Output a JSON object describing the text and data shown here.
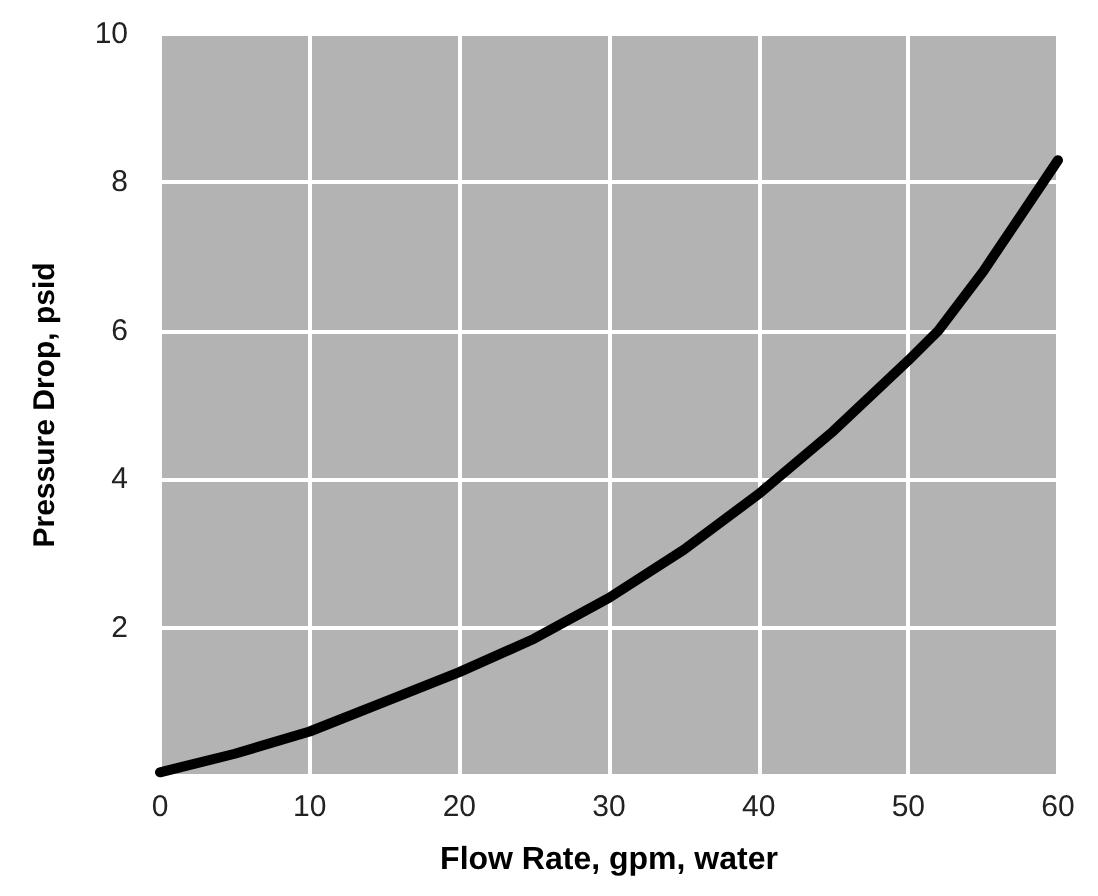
{
  "chart_data": {
    "type": "line",
    "xlabel": "Flow Rate, gpm, water",
    "ylabel": "Pressure Drop, psid",
    "x": [
      0,
      5,
      10,
      15,
      20,
      25,
      30,
      35,
      40,
      45,
      50,
      52,
      55,
      57,
      60
    ],
    "series": [
      {
        "color": "#000000",
        "values": [
          0.05,
          0.3,
          0.6,
          1.0,
          1.4,
          1.85,
          2.4,
          3.05,
          3.8,
          4.65,
          5.6,
          6.0,
          6.8,
          7.4,
          8.3
        ]
      }
    ],
    "xlim": [
      0,
      60
    ],
    "xticks": [
      0,
      10,
      20,
      30,
      40,
      50,
      60
    ],
    "ylim": [
      0,
      10
    ],
    "yticks": [
      {
        "value": 0,
        "label": null
      },
      2,
      4,
      6,
      8,
      10
    ],
    "grid": true,
    "marker": "none",
    "line_style": "solid"
  }
}
